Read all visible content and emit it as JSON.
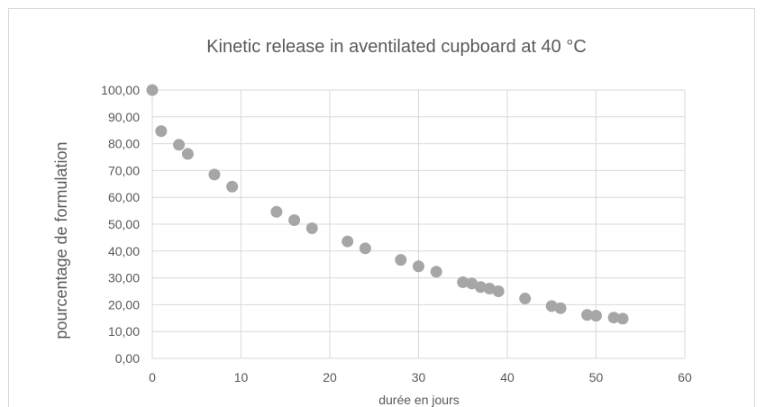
{
  "chart_data": {
    "type": "scatter",
    "title": "Kinetic release in aventilated cupboard at 40 °C",
    "xlabel": "durée en jours",
    "ylabel": "pourcentage de formulation",
    "xlim": [
      0,
      60
    ],
    "ylim": [
      0,
      100
    ],
    "x_ticks": [
      "0",
      "10",
      "20",
      "30",
      "40",
      "50",
      "60"
    ],
    "y_ticks": [
      "0,00",
      "10,00",
      "20,00",
      "30,00",
      "40,00",
      "50,00",
      "60,00",
      "70,00",
      "80,00",
      "90,00",
      "100,00"
    ],
    "grid": "vertical and horizontal",
    "marker_color": "#a6a6a6",
    "series": [
      {
        "points": [
          [
            0,
            100.0
          ],
          [
            1,
            84.7
          ],
          [
            3,
            79.6
          ],
          [
            4,
            76.2
          ],
          [
            7,
            68.5
          ],
          [
            9,
            64.0
          ],
          [
            14,
            54.6
          ],
          [
            16,
            51.5
          ],
          [
            18,
            48.5
          ],
          [
            22,
            43.6
          ],
          [
            24,
            41.0
          ],
          [
            28,
            36.7
          ],
          [
            30,
            34.3
          ],
          [
            32,
            32.3
          ],
          [
            35,
            28.4
          ],
          [
            36,
            27.9
          ],
          [
            37,
            26.6
          ],
          [
            38,
            26.0
          ],
          [
            39,
            25.0
          ],
          [
            42,
            22.3
          ],
          [
            45,
            19.5
          ],
          [
            46,
            18.7
          ],
          [
            49,
            16.2
          ],
          [
            50,
            15.9
          ],
          [
            52,
            15.2
          ],
          [
            53,
            14.8
          ]
        ]
      }
    ]
  }
}
